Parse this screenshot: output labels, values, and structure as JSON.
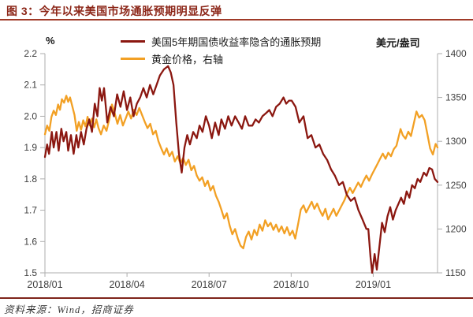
{
  "title": "图 3：今年以来美国市场通胀预期明显反弹",
  "source": "资料来源：Wind，招商证券",
  "colors": {
    "title": "#8C2618",
    "title_rule": "#A03A28",
    "bottom_rule": "#7E241B",
    "axis_line": "#ADADAD",
    "tick_text": "#3F3F3F",
    "inflation_line": "#8B1710",
    "gold_line": "#F2A024"
  },
  "legend": {
    "items": [
      {
        "label": "美国5年期国债收益率隐含的通胀预期",
        "color": "#8B1710"
      },
      {
        "label": "黄金价格，右轴",
        "color": "#F2A024"
      }
    ]
  },
  "chart_data": {
    "type": "line",
    "title": "今年以来美国市场通胀预期明显反弹",
    "x_unit": "months since 2018-01",
    "x_range": [
      0,
      14.35
    ],
    "x_ticks": [
      {
        "pos": 0,
        "label": "2018/01"
      },
      {
        "pos": 3,
        "label": "2018/04"
      },
      {
        "pos": 6,
        "label": "2018/07"
      },
      {
        "pos": 9,
        "label": "2018/10"
      },
      {
        "pos": 12,
        "label": "2019/01"
      }
    ],
    "y_left": {
      "unit": "%",
      "min": 1.5,
      "max": 2.2,
      "ticks": [
        2.2,
        2.1,
        2.0,
        1.9,
        1.8,
        1.7,
        1.6,
        1.5
      ]
    },
    "y_right": {
      "unit": "美元/盎司",
      "min": 1150,
      "max": 1400,
      "ticks": [
        1400,
        1350,
        1300,
        1250,
        1200,
        1150
      ]
    },
    "grid": false,
    "legend_position": "top",
    "series": [
      {
        "name": "黄金价格，右轴",
        "axis": "right",
        "color": "#F2A024",
        "points": [
          [
            0.0,
            1308
          ],
          [
            0.08,
            1318
          ],
          [
            0.16,
            1312
          ],
          [
            0.24,
            1328
          ],
          [
            0.32,
            1335
          ],
          [
            0.4,
            1330
          ],
          [
            0.48,
            1342
          ],
          [
            0.55,
            1336
          ],
          [
            0.62,
            1348
          ],
          [
            0.7,
            1344
          ],
          [
            0.78,
            1352
          ],
          [
            0.85,
            1345
          ],
          [
            0.92,
            1350
          ],
          [
            1.0,
            1340
          ],
          [
            1.08,
            1330
          ],
          [
            1.16,
            1312
          ],
          [
            1.24,
            1322
          ],
          [
            1.32,
            1313
          ],
          [
            1.4,
            1324
          ],
          [
            1.48,
            1317
          ],
          [
            1.56,
            1328
          ],
          [
            1.64,
            1318
          ],
          [
            1.72,
            1326
          ],
          [
            1.8,
            1316
          ],
          [
            1.88,
            1325
          ],
          [
            1.96,
            1315
          ],
          [
            2.05,
            1308
          ],
          [
            2.15,
            1318
          ],
          [
            2.25,
            1312
          ],
          [
            2.35,
            1325
          ],
          [
            2.45,
            1342
          ],
          [
            2.55,
            1332
          ],
          [
            2.65,
            1320
          ],
          [
            2.75,
            1330
          ],
          [
            2.85,
            1318
          ],
          [
            2.95,
            1326
          ],
          [
            3.05,
            1334
          ],
          [
            3.15,
            1326
          ],
          [
            3.25,
            1336
          ],
          [
            3.35,
            1330
          ],
          [
            3.45,
            1338
          ],
          [
            3.55,
            1330
          ],
          [
            3.65,
            1322
          ],
          [
            3.75,
            1315
          ],
          [
            3.85,
            1320
          ],
          [
            3.95,
            1308
          ],
          [
            4.05,
            1312
          ],
          [
            4.15,
            1300
          ],
          [
            4.25,
            1292
          ],
          [
            4.35,
            1285
          ],
          [
            4.45,
            1292
          ],
          [
            4.55,
            1283
          ],
          [
            4.65,
            1288
          ],
          [
            4.75,
            1277
          ],
          [
            4.85,
            1283
          ],
          [
            4.95,
            1275
          ],
          [
            5.05,
            1281
          ],
          [
            5.15,
            1273
          ],
          [
            5.25,
            1279
          ],
          [
            5.35,
            1267
          ],
          [
            5.45,
            1272
          ],
          [
            5.55,
            1261
          ],
          [
            5.65,
            1255
          ],
          [
            5.75,
            1259
          ],
          [
            5.85,
            1249
          ],
          [
            5.95,
            1255
          ],
          [
            6.05,
            1244
          ],
          [
            6.15,
            1249
          ],
          [
            6.25,
            1238
          ],
          [
            6.35,
            1231
          ],
          [
            6.45,
            1222
          ],
          [
            6.55,
            1212
          ],
          [
            6.65,
            1218
          ],
          [
            6.75,
            1204
          ],
          [
            6.85,
            1194
          ],
          [
            6.95,
            1200
          ],
          [
            7.05,
            1189
          ],
          [
            7.15,
            1181
          ],
          [
            7.25,
            1178
          ],
          [
            7.35,
            1191
          ],
          [
            7.45,
            1197
          ],
          [
            7.55,
            1188
          ],
          [
            7.65,
            1199
          ],
          [
            7.75,
            1193
          ],
          [
            7.85,
            1205
          ],
          [
            7.95,
            1198
          ],
          [
            8.05,
            1210
          ],
          [
            8.15,
            1203
          ],
          [
            8.25,
            1207
          ],
          [
            8.35,
            1199
          ],
          [
            8.45,
            1205
          ],
          [
            8.55,
            1197
          ],
          [
            8.65,
            1203
          ],
          [
            8.75,
            1195
          ],
          [
            8.85,
            1202
          ],
          [
            8.95,
            1193
          ],
          [
            9.05,
            1198
          ],
          [
            9.15,
            1189
          ],
          [
            9.25,
            1205
          ],
          [
            9.35,
            1222
          ],
          [
            9.45,
            1227
          ],
          [
            9.55,
            1219
          ],
          [
            9.65,
            1225
          ],
          [
            9.75,
            1231
          ],
          [
            9.85,
            1223
          ],
          [
            9.95,
            1229
          ],
          [
            10.05,
            1221
          ],
          [
            10.15,
            1215
          ],
          [
            10.25,
            1223
          ],
          [
            10.35,
            1211
          ],
          [
            10.45,
            1217
          ],
          [
            10.55,
            1223
          ],
          [
            10.65,
            1215
          ],
          [
            10.75,
            1221
          ],
          [
            10.85,
            1227
          ],
          [
            10.95,
            1233
          ],
          [
            11.05,
            1241
          ],
          [
            11.15,
            1247
          ],
          [
            11.25,
            1241
          ],
          [
            11.35,
            1247
          ],
          [
            11.45,
            1253
          ],
          [
            11.55,
            1248
          ],
          [
            11.65,
            1255
          ],
          [
            11.75,
            1261
          ],
          [
            11.85,
            1255
          ],
          [
            11.95,
            1262
          ],
          [
            12.05,
            1268
          ],
          [
            12.15,
            1274
          ],
          [
            12.25,
            1280
          ],
          [
            12.35,
            1286
          ],
          [
            12.45,
            1280
          ],
          [
            12.55,
            1287
          ],
          [
            12.65,
            1283
          ],
          [
            12.75,
            1291
          ],
          [
            12.85,
            1295
          ],
          [
            13.0,
            1314
          ],
          [
            13.08,
            1307
          ],
          [
            13.18,
            1303
          ],
          [
            13.28,
            1311
          ],
          [
            13.38,
            1306
          ],
          [
            13.48,
            1320
          ],
          [
            13.58,
            1334
          ],
          [
            13.68,
            1327
          ],
          [
            13.78,
            1330
          ],
          [
            13.88,
            1324
          ],
          [
            13.98,
            1308
          ],
          [
            14.08,
            1292
          ],
          [
            14.18,
            1285
          ],
          [
            14.28,
            1297
          ],
          [
            14.35,
            1293
          ]
        ]
      },
      {
        "name": "美国5年期国债收益率隐含的通胀预期",
        "axis": "left",
        "color": "#8B1710",
        "points": [
          [
            0.0,
            1.87
          ],
          [
            0.08,
            1.91
          ],
          [
            0.15,
            1.88
          ],
          [
            0.25,
            1.95
          ],
          [
            0.32,
            1.9
          ],
          [
            0.42,
            1.95
          ],
          [
            0.5,
            1.89
          ],
          [
            0.6,
            1.96
          ],
          [
            0.68,
            1.92
          ],
          [
            0.78,
            1.95
          ],
          [
            0.85,
            1.89
          ],
          [
            0.95,
            1.94
          ],
          [
            1.05,
            1.88
          ],
          [
            1.15,
            1.94
          ],
          [
            1.22,
            1.9
          ],
          [
            1.32,
            1.95
          ],
          [
            1.42,
            1.91
          ],
          [
            1.52,
            1.96
          ],
          [
            1.62,
            1.99
          ],
          [
            1.72,
            1.95
          ],
          [
            1.82,
            2.04
          ],
          [
            1.92,
            2.0
          ],
          [
            2.0,
            2.09
          ],
          [
            2.08,
            2.05
          ],
          [
            2.16,
            2.09
          ],
          [
            2.28,
            1.98
          ],
          [
            2.4,
            2.03
          ],
          [
            2.52,
            2.0
          ],
          [
            2.64,
            2.07
          ],
          [
            2.76,
            2.03
          ],
          [
            2.88,
            2.08
          ],
          [
            3.0,
            2.02
          ],
          [
            3.12,
            2.06
          ],
          [
            3.24,
            2.0
          ],
          [
            3.36,
            2.04
          ],
          [
            3.48,
            2.06
          ],
          [
            3.6,
            2.09
          ],
          [
            3.72,
            2.06
          ],
          [
            3.84,
            2.1
          ],
          [
            3.96,
            2.07
          ],
          [
            4.08,
            2.1
          ],
          [
            4.2,
            2.13
          ],
          [
            4.35,
            2.15
          ],
          [
            4.5,
            2.16
          ],
          [
            4.6,
            2.14
          ],
          [
            4.7,
            2.1
          ],
          [
            4.8,
            1.98
          ],
          [
            4.9,
            1.88
          ],
          [
            5.0,
            1.82
          ],
          [
            5.1,
            1.9
          ],
          [
            5.2,
            1.94
          ],
          [
            5.3,
            1.91
          ],
          [
            5.42,
            1.95
          ],
          [
            5.55,
            1.93
          ],
          [
            5.65,
            1.97
          ],
          [
            5.76,
            1.95
          ],
          [
            5.88,
            2.0
          ],
          [
            6.0,
            1.97
          ],
          [
            6.1,
            1.93
          ],
          [
            6.22,
            1.98
          ],
          [
            6.35,
            1.94
          ],
          [
            6.45,
            1.99
          ],
          [
            6.58,
            1.96
          ],
          [
            6.7,
            2.0
          ],
          [
            6.82,
            1.97
          ],
          [
            6.95,
            2.0
          ],
          [
            7.08,
            1.98
          ],
          [
            7.2,
            1.96
          ],
          [
            7.32,
            2.0
          ],
          [
            7.45,
            1.97
          ],
          [
            7.58,
            1.97
          ],
          [
            7.7,
            1.99
          ],
          [
            7.82,
            1.98
          ],
          [
            7.95,
            2.0
          ],
          [
            8.08,
            2.01
          ],
          [
            8.2,
            2.02
          ],
          [
            8.32,
            2.0
          ],
          [
            8.45,
            2.03
          ],
          [
            8.58,
            2.04
          ],
          [
            8.72,
            2.06
          ],
          [
            8.82,
            2.04
          ],
          [
            8.92,
            2.05
          ],
          [
            9.02,
            2.05
          ],
          [
            9.16,
            2.03
          ],
          [
            9.3,
            1.98
          ],
          [
            9.45,
            2.0
          ],
          [
            9.6,
            1.93
          ],
          [
            9.74,
            1.94
          ],
          [
            9.89,
            1.9
          ],
          [
            10.03,
            1.91
          ],
          [
            10.17,
            1.88
          ],
          [
            10.32,
            1.86
          ],
          [
            10.46,
            1.83
          ],
          [
            10.6,
            1.81
          ],
          [
            10.75,
            1.78
          ],
          [
            10.89,
            1.79
          ],
          [
            11.03,
            1.75
          ],
          [
            11.18,
            1.73
          ],
          [
            11.32,
            1.74
          ],
          [
            11.46,
            1.7
          ],
          [
            11.61,
            1.67
          ],
          [
            11.75,
            1.64
          ],
          [
            11.82,
            1.64
          ],
          [
            11.9,
            1.55
          ],
          [
            11.96,
            1.5
          ],
          [
            12.05,
            1.56
          ],
          [
            12.13,
            1.51
          ],
          [
            12.22,
            1.58
          ],
          [
            12.32,
            1.66
          ],
          [
            12.42,
            1.63
          ],
          [
            12.52,
            1.68
          ],
          [
            12.62,
            1.71
          ],
          [
            12.72,
            1.67
          ],
          [
            12.82,
            1.7
          ],
          [
            12.92,
            1.72
          ],
          [
            13.02,
            1.74
          ],
          [
            13.12,
            1.72
          ],
          [
            13.22,
            1.76
          ],
          [
            13.32,
            1.74
          ],
          [
            13.42,
            1.78
          ],
          [
            13.52,
            1.77
          ],
          [
            13.62,
            1.8
          ],
          [
            13.72,
            1.79
          ],
          [
            13.85,
            1.82
          ],
          [
            13.95,
            1.81
          ],
          [
            14.05,
            1.835
          ],
          [
            14.15,
            1.83
          ],
          [
            14.25,
            1.8
          ],
          [
            14.35,
            1.79
          ]
        ]
      }
    ]
  }
}
